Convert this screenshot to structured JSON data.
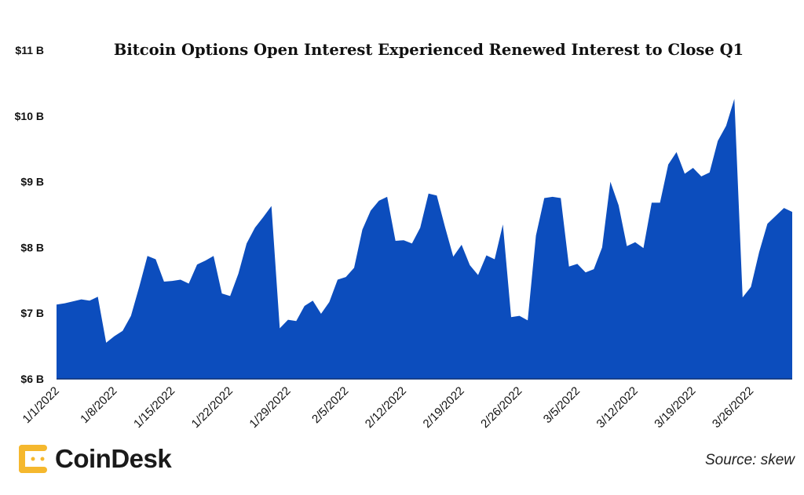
{
  "chart_data": {
    "type": "area",
    "title": "Bitcoin Options Open Interest Experienced Renewed Interest to Close Q1",
    "xlabel": "",
    "ylabel": "",
    "x_unit": "days since 1/1/2022",
    "x": [
      0,
      1,
      2,
      3,
      4,
      5,
      6,
      7,
      8,
      9,
      10,
      11,
      12,
      13,
      14,
      15,
      16,
      17,
      18,
      19,
      20,
      21,
      22,
      23,
      24,
      25,
      26,
      27,
      28,
      29,
      30,
      31,
      32,
      33,
      34,
      35,
      36,
      37,
      38,
      39,
      40,
      41,
      42,
      43,
      44,
      45,
      46,
      47,
      48,
      49,
      50,
      51,
      52,
      53,
      54,
      55,
      56,
      57,
      58,
      59,
      60,
      61,
      62,
      63,
      64,
      65,
      66,
      67,
      68,
      69,
      70,
      71,
      72,
      73,
      74,
      75,
      76,
      77,
      78,
      79,
      80,
      81,
      82,
      83,
      84,
      85,
      86,
      87,
      88,
      89
    ],
    "series": [
      {
        "name": "Bitcoin options open interest ($B)",
        "color": "#0c4dbd",
        "values": [
          7.13,
          7.15,
          7.18,
          7.21,
          7.19,
          7.25,
          6.55,
          6.65,
          6.73,
          6.96,
          7.4,
          7.87,
          7.82,
          7.48,
          7.49,
          7.51,
          7.45,
          7.74,
          7.8,
          7.87,
          7.3,
          7.26,
          7.6,
          8.06,
          8.3,
          8.46,
          8.63,
          6.77,
          6.9,
          6.88,
          7.11,
          7.19,
          6.99,
          7.17,
          7.51,
          7.55,
          7.69,
          8.27,
          8.56,
          8.71,
          8.77,
          8.1,
          8.11,
          8.06,
          8.3,
          8.82,
          8.79,
          8.31,
          7.86,
          8.04,
          7.73,
          7.58,
          7.88,
          7.82,
          8.35,
          6.94,
          6.96,
          6.89,
          8.18,
          8.75,
          8.77,
          8.75,
          7.71,
          7.75,
          7.62,
          7.67,
          8.0,
          9.0,
          8.64,
          8.02,
          8.08,
          7.99,
          8.68,
          8.68,
          9.26,
          9.45,
          9.12,
          9.21,
          9.08,
          9.14,
          9.62,
          9.85,
          10.26,
          7.24,
          7.4,
          7.93,
          8.36,
          8.48,
          8.6,
          8.54
        ]
      }
    ],
    "ylim": [
      6,
      11
    ],
    "xlim": [
      0,
      89
    ],
    "y_ticks": [
      6,
      7,
      8,
      9,
      10,
      11
    ],
    "y_tick_labels": [
      "$6 B",
      "$7 B",
      "$8 B",
      "$9 B",
      "$10 B",
      "$11 B"
    ],
    "x_ticks": [
      0,
      7,
      14,
      21,
      28,
      35,
      42,
      49,
      56,
      63,
      70,
      77,
      84
    ],
    "x_tick_labels": [
      "1/1/2022",
      "1/8/2022",
      "1/15/2022",
      "1/22/2022",
      "1/29/2022",
      "2/5/2022",
      "2/12/2022",
      "2/19/2022",
      "2/26/2022",
      "3/5/2022",
      "3/12/2022",
      "3/19/2022",
      "3/26/2022"
    ],
    "grid": false,
    "legend": "none"
  },
  "branding": {
    "logo_text": "CoinDesk",
    "logo_color": "#f5b82e"
  },
  "source": "Source: skew"
}
